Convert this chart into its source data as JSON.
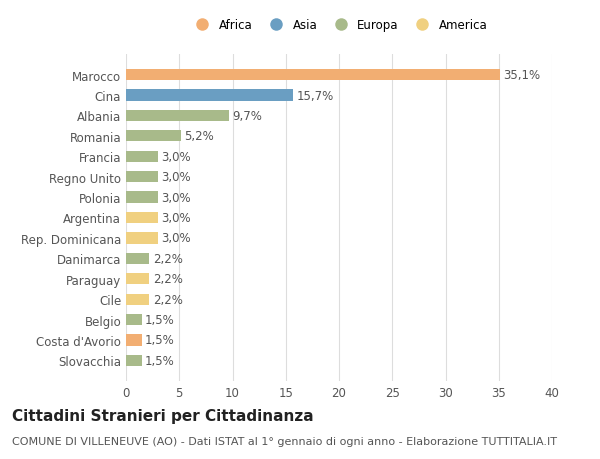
{
  "categories": [
    "Marocco",
    "Cina",
    "Albania",
    "Romania",
    "Francia",
    "Regno Unito",
    "Polonia",
    "Argentina",
    "Rep. Dominicana",
    "Danimarca",
    "Paraguay",
    "Cile",
    "Belgio",
    "Costa d'Avorio",
    "Slovacchia"
  ],
  "values": [
    35.1,
    15.7,
    9.7,
    5.2,
    3.0,
    3.0,
    3.0,
    3.0,
    3.0,
    2.2,
    2.2,
    2.2,
    1.5,
    1.5,
    1.5
  ],
  "labels": [
    "35,1%",
    "15,7%",
    "9,7%",
    "5,2%",
    "3,0%",
    "3,0%",
    "3,0%",
    "3,0%",
    "3,0%",
    "2,2%",
    "2,2%",
    "2,2%",
    "1,5%",
    "1,5%",
    "1,5%"
  ],
  "continents": [
    "Africa",
    "Asia",
    "Europa",
    "Europa",
    "Europa",
    "Europa",
    "Europa",
    "America",
    "America",
    "Europa",
    "America",
    "America",
    "Europa",
    "Africa",
    "Europa"
  ],
  "colors": {
    "Africa": "#F2AE72",
    "Asia": "#6A9EC2",
    "Europa": "#A8BA8A",
    "America": "#F0D080"
  },
  "legend_order": [
    "Africa",
    "Asia",
    "Europa",
    "America"
  ],
  "xlim": [
    0,
    40
  ],
  "xticks": [
    0,
    5,
    10,
    15,
    20,
    25,
    30,
    35,
    40
  ],
  "title": "Cittadini Stranieri per Cittadinanza",
  "subtitle": "COMUNE DI VILLENEUVE (AO) - Dati ISTAT al 1° gennaio di ogni anno - Elaborazione TUTTITALIA.IT",
  "background_color": "#FFFFFF",
  "grid_color": "#DDDDDD",
  "label_fontsize": 8.5,
  "bar_height": 0.55,
  "title_fontsize": 11,
  "subtitle_fontsize": 8
}
